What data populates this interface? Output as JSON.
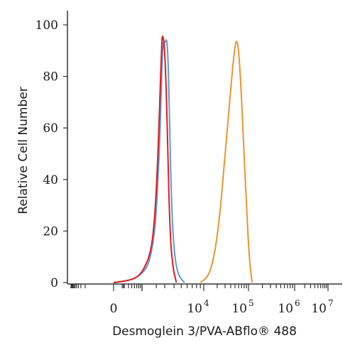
{
  "chart_data": {
    "type": "line",
    "title": "",
    "xlabel": "Desmoglein 3/PVA-ABflo® 488",
    "ylabel": "Relative Cell Number",
    "xscale": "biexponential",
    "xlim": [
      -1000,
      10000000
    ],
    "ylim": [
      0,
      100
    ],
    "yticks": [
      0,
      20,
      40,
      60,
      80,
      100
    ],
    "xtick_labels": [
      {
        "value": 0,
        "base": "0",
        "exp": ""
      },
      {
        "value": 10000,
        "base": "10",
        "exp": "4"
      },
      {
        "value": 100000,
        "base": "10",
        "exp": "5"
      },
      {
        "value": 1000000,
        "base": "10",
        "exp": "6"
      },
      {
        "value": 10000000,
        "base": "10",
        "exp": "7"
      }
    ],
    "grid": false,
    "series": [
      {
        "color": "#5b9bd5",
        "x": [
          0,
          500,
          900,
          1300,
          1600,
          1900,
          2100,
          2300,
          2500,
          2600,
          2750,
          2900,
          3050,
          3200,
          3350,
          3500,
          3700,
          4000,
          4500,
          5500
        ],
        "y": [
          0,
          1,
          3,
          6,
          12,
          22,
          35,
          50,
          70,
          82,
          92,
          94,
          93,
          95,
          85,
          60,
          30,
          12,
          3,
          0
        ]
      },
      {
        "color": "#e41a1c",
        "x": [
          0,
          500,
          900,
          1300,
          1600,
          1850,
          2050,
          2250,
          2400,
          2550,
          2650,
          2800,
          2950,
          3100,
          3250,
          3400,
          3600,
          3900,
          4300
        ],
        "y": [
          0,
          1,
          3,
          8,
          14,
          25,
          40,
          58,
          75,
          88,
          96,
          95,
          92,
          80,
          60,
          35,
          15,
          5,
          0
        ]
      },
      {
        "color": "#f0932b",
        "x": [
          9000,
          12000,
          15000,
          19000,
          24000,
          30000,
          38000,
          45000,
          52000,
          58000,
          65000,
          75000,
          90000,
          105000,
          120000
        ],
        "y": [
          0,
          2,
          6,
          15,
          30,
          50,
          70,
          85,
          94,
          93,
          82,
          60,
          30,
          8,
          0
        ]
      }
    ]
  }
}
